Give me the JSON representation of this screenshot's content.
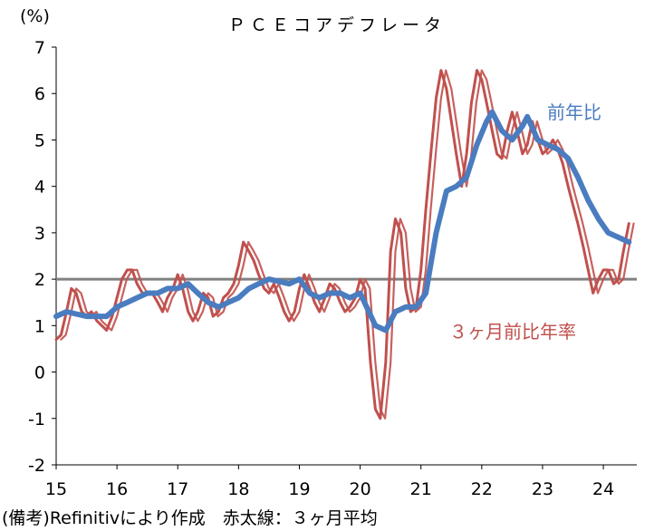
{
  "chart_data": {
    "type": "line",
    "title": "ＰＣＥコアデフレータ",
    "y_unit_label": "(%)",
    "ylim": [
      -2,
      7
    ],
    "y_ticks": [
      "7",
      "6",
      "5",
      "4",
      "3",
      "2",
      "1",
      "0",
      "-1",
      "-2"
    ],
    "x_tick_labels": [
      "15",
      "16",
      "17",
      "18",
      "19",
      "20",
      "21",
      "22",
      "23",
      "24"
    ],
    "xlim": [
      2015.0,
      2024.55
    ],
    "reference_line": {
      "y": 2,
      "color": "#808080"
    },
    "colors": {
      "yoy": "#4a7cc0",
      "ann3m": "#c0504d",
      "ref": "#808080",
      "axis": "#000000"
    },
    "series": [
      {
        "name": "前年比",
        "points": [
          [
            2015.0,
            1.2
          ],
          [
            2015.17,
            1.3
          ],
          [
            2015.33,
            1.25
          ],
          [
            2015.5,
            1.2
          ],
          [
            2015.67,
            1.2
          ],
          [
            2015.83,
            1.2
          ],
          [
            2016.0,
            1.4
          ],
          [
            2016.17,
            1.5
          ],
          [
            2016.33,
            1.6
          ],
          [
            2016.5,
            1.7
          ],
          [
            2016.67,
            1.7
          ],
          [
            2016.83,
            1.8
          ],
          [
            2017.0,
            1.8
          ],
          [
            2017.17,
            1.9
          ],
          [
            2017.33,
            1.7
          ],
          [
            2017.5,
            1.5
          ],
          [
            2017.67,
            1.4
          ],
          [
            2017.83,
            1.5
          ],
          [
            2018.0,
            1.6
          ],
          [
            2018.17,
            1.8
          ],
          [
            2018.33,
            1.9
          ],
          [
            2018.5,
            2.0
          ],
          [
            2018.67,
            1.95
          ],
          [
            2018.83,
            1.9
          ],
          [
            2019.0,
            2.0
          ],
          [
            2019.17,
            1.7
          ],
          [
            2019.33,
            1.6
          ],
          [
            2019.5,
            1.7
          ],
          [
            2019.67,
            1.7
          ],
          [
            2019.83,
            1.6
          ],
          [
            2020.0,
            1.7
          ],
          [
            2020.25,
            1.0
          ],
          [
            2020.42,
            0.9
          ],
          [
            2020.58,
            1.3
          ],
          [
            2020.75,
            1.4
          ],
          [
            2020.92,
            1.4
          ],
          [
            2021.08,
            1.7
          ],
          [
            2021.25,
            3.0
          ],
          [
            2021.42,
            3.9
          ],
          [
            2021.58,
            4.0
          ],
          [
            2021.75,
            4.2
          ],
          [
            2021.92,
            4.9
          ],
          [
            2022.08,
            5.4
          ],
          [
            2022.17,
            5.6
          ],
          [
            2022.33,
            5.2
          ],
          [
            2022.5,
            5.0
          ],
          [
            2022.67,
            5.3
          ],
          [
            2022.75,
            5.5
          ],
          [
            2022.92,
            5.0
          ],
          [
            2023.08,
            4.9
          ],
          [
            2023.25,
            4.8
          ],
          [
            2023.42,
            4.6
          ],
          [
            2023.58,
            4.2
          ],
          [
            2023.75,
            3.7
          ],
          [
            2023.92,
            3.3
          ],
          [
            2024.08,
            3.0
          ],
          [
            2024.25,
            2.9
          ],
          [
            2024.42,
            2.8
          ]
        ]
      },
      {
        "name": "３ヶ月前比年率",
        "points": [
          [
            2015.0,
            0.7
          ],
          [
            2015.08,
            0.8
          ],
          [
            2015.17,
            1.3
          ],
          [
            2015.25,
            1.8
          ],
          [
            2015.33,
            1.7
          ],
          [
            2015.42,
            1.3
          ],
          [
            2015.5,
            1.2
          ],
          [
            2015.58,
            1.3
          ],
          [
            2015.67,
            1.1
          ],
          [
            2015.75,
            1.0
          ],
          [
            2015.83,
            0.9
          ],
          [
            2015.92,
            1.2
          ],
          [
            2016.0,
            1.6
          ],
          [
            2016.08,
            2.0
          ],
          [
            2016.17,
            2.2
          ],
          [
            2016.25,
            2.2
          ],
          [
            2016.33,
            1.9
          ],
          [
            2016.42,
            1.7
          ],
          [
            2016.5,
            1.7
          ],
          [
            2016.58,
            1.7
          ],
          [
            2016.67,
            1.5
          ],
          [
            2016.75,
            1.3
          ],
          [
            2016.83,
            1.6
          ],
          [
            2016.92,
            1.8
          ],
          [
            2017.0,
            2.1
          ],
          [
            2017.08,
            1.8
          ],
          [
            2017.17,
            1.3
          ],
          [
            2017.25,
            1.1
          ],
          [
            2017.33,
            1.3
          ],
          [
            2017.42,
            1.7
          ],
          [
            2017.5,
            1.6
          ],
          [
            2017.58,
            1.2
          ],
          [
            2017.67,
            1.3
          ],
          [
            2017.75,
            1.6
          ],
          [
            2017.83,
            1.7
          ],
          [
            2017.92,
            1.9
          ],
          [
            2018.0,
            2.3
          ],
          [
            2018.08,
            2.8
          ],
          [
            2018.17,
            2.6
          ],
          [
            2018.25,
            2.4
          ],
          [
            2018.33,
            2.1
          ],
          [
            2018.42,
            1.8
          ],
          [
            2018.5,
            1.7
          ],
          [
            2018.58,
            1.9
          ],
          [
            2018.67,
            1.6
          ],
          [
            2018.75,
            1.3
          ],
          [
            2018.83,
            1.1
          ],
          [
            2018.92,
            1.3
          ],
          [
            2019.0,
            1.8
          ],
          [
            2019.08,
            2.1
          ],
          [
            2019.17,
            1.8
          ],
          [
            2019.25,
            1.5
          ],
          [
            2019.33,
            1.3
          ],
          [
            2019.42,
            1.6
          ],
          [
            2019.5,
            1.9
          ],
          [
            2019.58,
            1.8
          ],
          [
            2019.67,
            1.5
          ],
          [
            2019.75,
            1.3
          ],
          [
            2019.83,
            1.4
          ],
          [
            2019.92,
            1.6
          ],
          [
            2020.0,
            2.0
          ],
          [
            2020.08,
            1.8
          ],
          [
            2020.17,
            0.2
          ],
          [
            2020.25,
            -0.8
          ],
          [
            2020.33,
            -1.0
          ],
          [
            2020.42,
            0.2
          ],
          [
            2020.5,
            2.6
          ],
          [
            2020.58,
            3.3
          ],
          [
            2020.67,
            3.0
          ],
          [
            2020.75,
            1.8
          ],
          [
            2020.83,
            1.3
          ],
          [
            2020.92,
            1.4
          ],
          [
            2021.0,
            2.2
          ],
          [
            2021.08,
            3.5
          ],
          [
            2021.17,
            4.8
          ],
          [
            2021.25,
            5.9
          ],
          [
            2021.33,
            6.5
          ],
          [
            2021.42,
            6.1
          ],
          [
            2021.5,
            5.4
          ],
          [
            2021.58,
            4.7
          ],
          [
            2021.67,
            4.0
          ],
          [
            2021.75,
            4.7
          ],
          [
            2021.83,
            5.8
          ],
          [
            2021.92,
            6.5
          ],
          [
            2022.0,
            6.3
          ],
          [
            2022.08,
            5.8
          ],
          [
            2022.17,
            5.2
          ],
          [
            2022.25,
            4.7
          ],
          [
            2022.33,
            4.6
          ],
          [
            2022.42,
            5.2
          ],
          [
            2022.5,
            5.6
          ],
          [
            2022.58,
            5.2
          ],
          [
            2022.67,
            4.7
          ],
          [
            2022.75,
            4.9
          ],
          [
            2022.83,
            5.4
          ],
          [
            2022.92,
            5.0
          ],
          [
            2023.0,
            4.7
          ],
          [
            2023.08,
            4.8
          ],
          [
            2023.17,
            5.0
          ],
          [
            2023.25,
            4.8
          ],
          [
            2023.33,
            4.5
          ],
          [
            2023.42,
            4.0
          ],
          [
            2023.5,
            3.6
          ],
          [
            2023.58,
            3.2
          ],
          [
            2023.67,
            2.7
          ],
          [
            2023.75,
            2.2
          ],
          [
            2023.83,
            1.7
          ],
          [
            2023.92,
            2.0
          ],
          [
            2024.0,
            2.2
          ],
          [
            2024.08,
            2.2
          ],
          [
            2024.17,
            1.9
          ],
          [
            2024.25,
            2.0
          ],
          [
            2024.33,
            2.6
          ],
          [
            2024.42,
            3.2
          ]
        ]
      }
    ],
    "annotations": [
      {
        "text": "前年比",
        "series": "前年比"
      },
      {
        "text": "３ヶ月前比年率",
        "series": "３ヶ月前比年率"
      }
    ]
  },
  "footnote": "(備考)Refinitivにより作成　赤太線：３ヶ月平均"
}
